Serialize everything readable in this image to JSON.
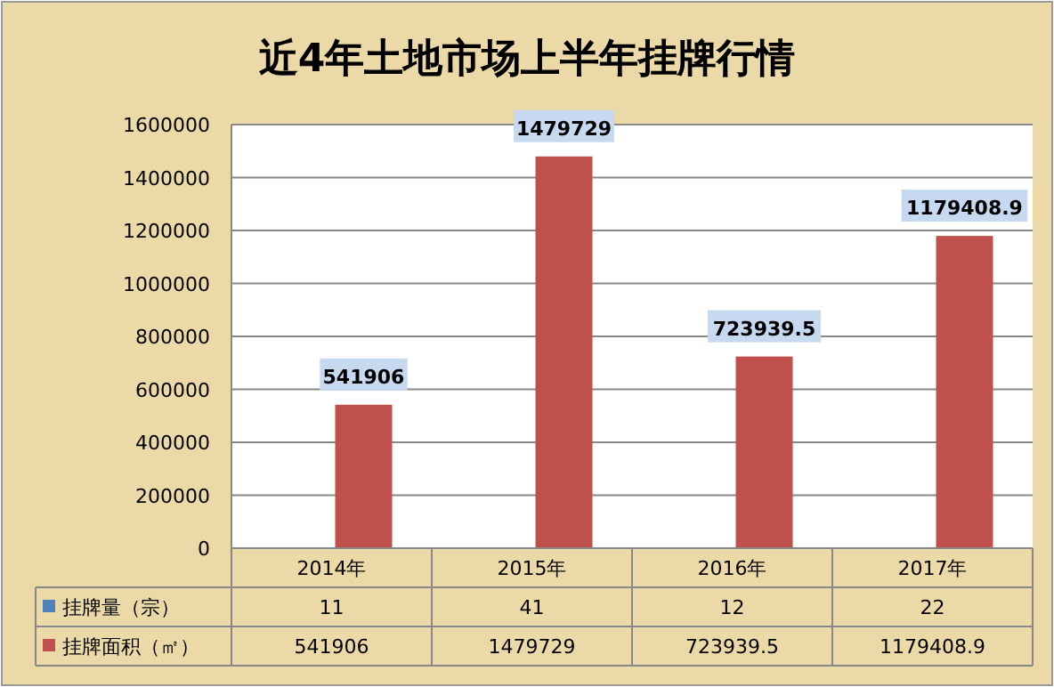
{
  "chart_data": {
    "type": "bar",
    "title": "近4年土地市场上半年挂牌行情",
    "categories": [
      "2014年",
      "2015年",
      "2016年",
      "2017年"
    ],
    "series": [
      {
        "name": "挂牌量（宗）",
        "color": "#4f81bd",
        "values": [
          11,
          41,
          12,
          22
        ]
      },
      {
        "name": "挂牌面积（㎡）",
        "color": "#c0504d",
        "values": [
          541906,
          1479729,
          723939.5,
          1179408.9
        ]
      }
    ],
    "annotations": [
      {
        "text": "541906",
        "x": "2014年",
        "y": 541906
      },
      {
        "text": "1479729",
        "x": "2015年",
        "y": 1479729
      },
      {
        "text": "723939.5",
        "x": "2016年",
        "y": 723939.5
      },
      {
        "text": "1179408.9",
        "x": "2017年",
        "y": 1179408.9
      }
    ],
    "ylim": [
      0,
      1600000
    ],
    "yticks": [
      0,
      200000,
      400000,
      600000,
      800000,
      1000000,
      1200000,
      1400000,
      1600000
    ],
    "grid": "y",
    "data_labels": true,
    "legend": "bottom"
  }
}
